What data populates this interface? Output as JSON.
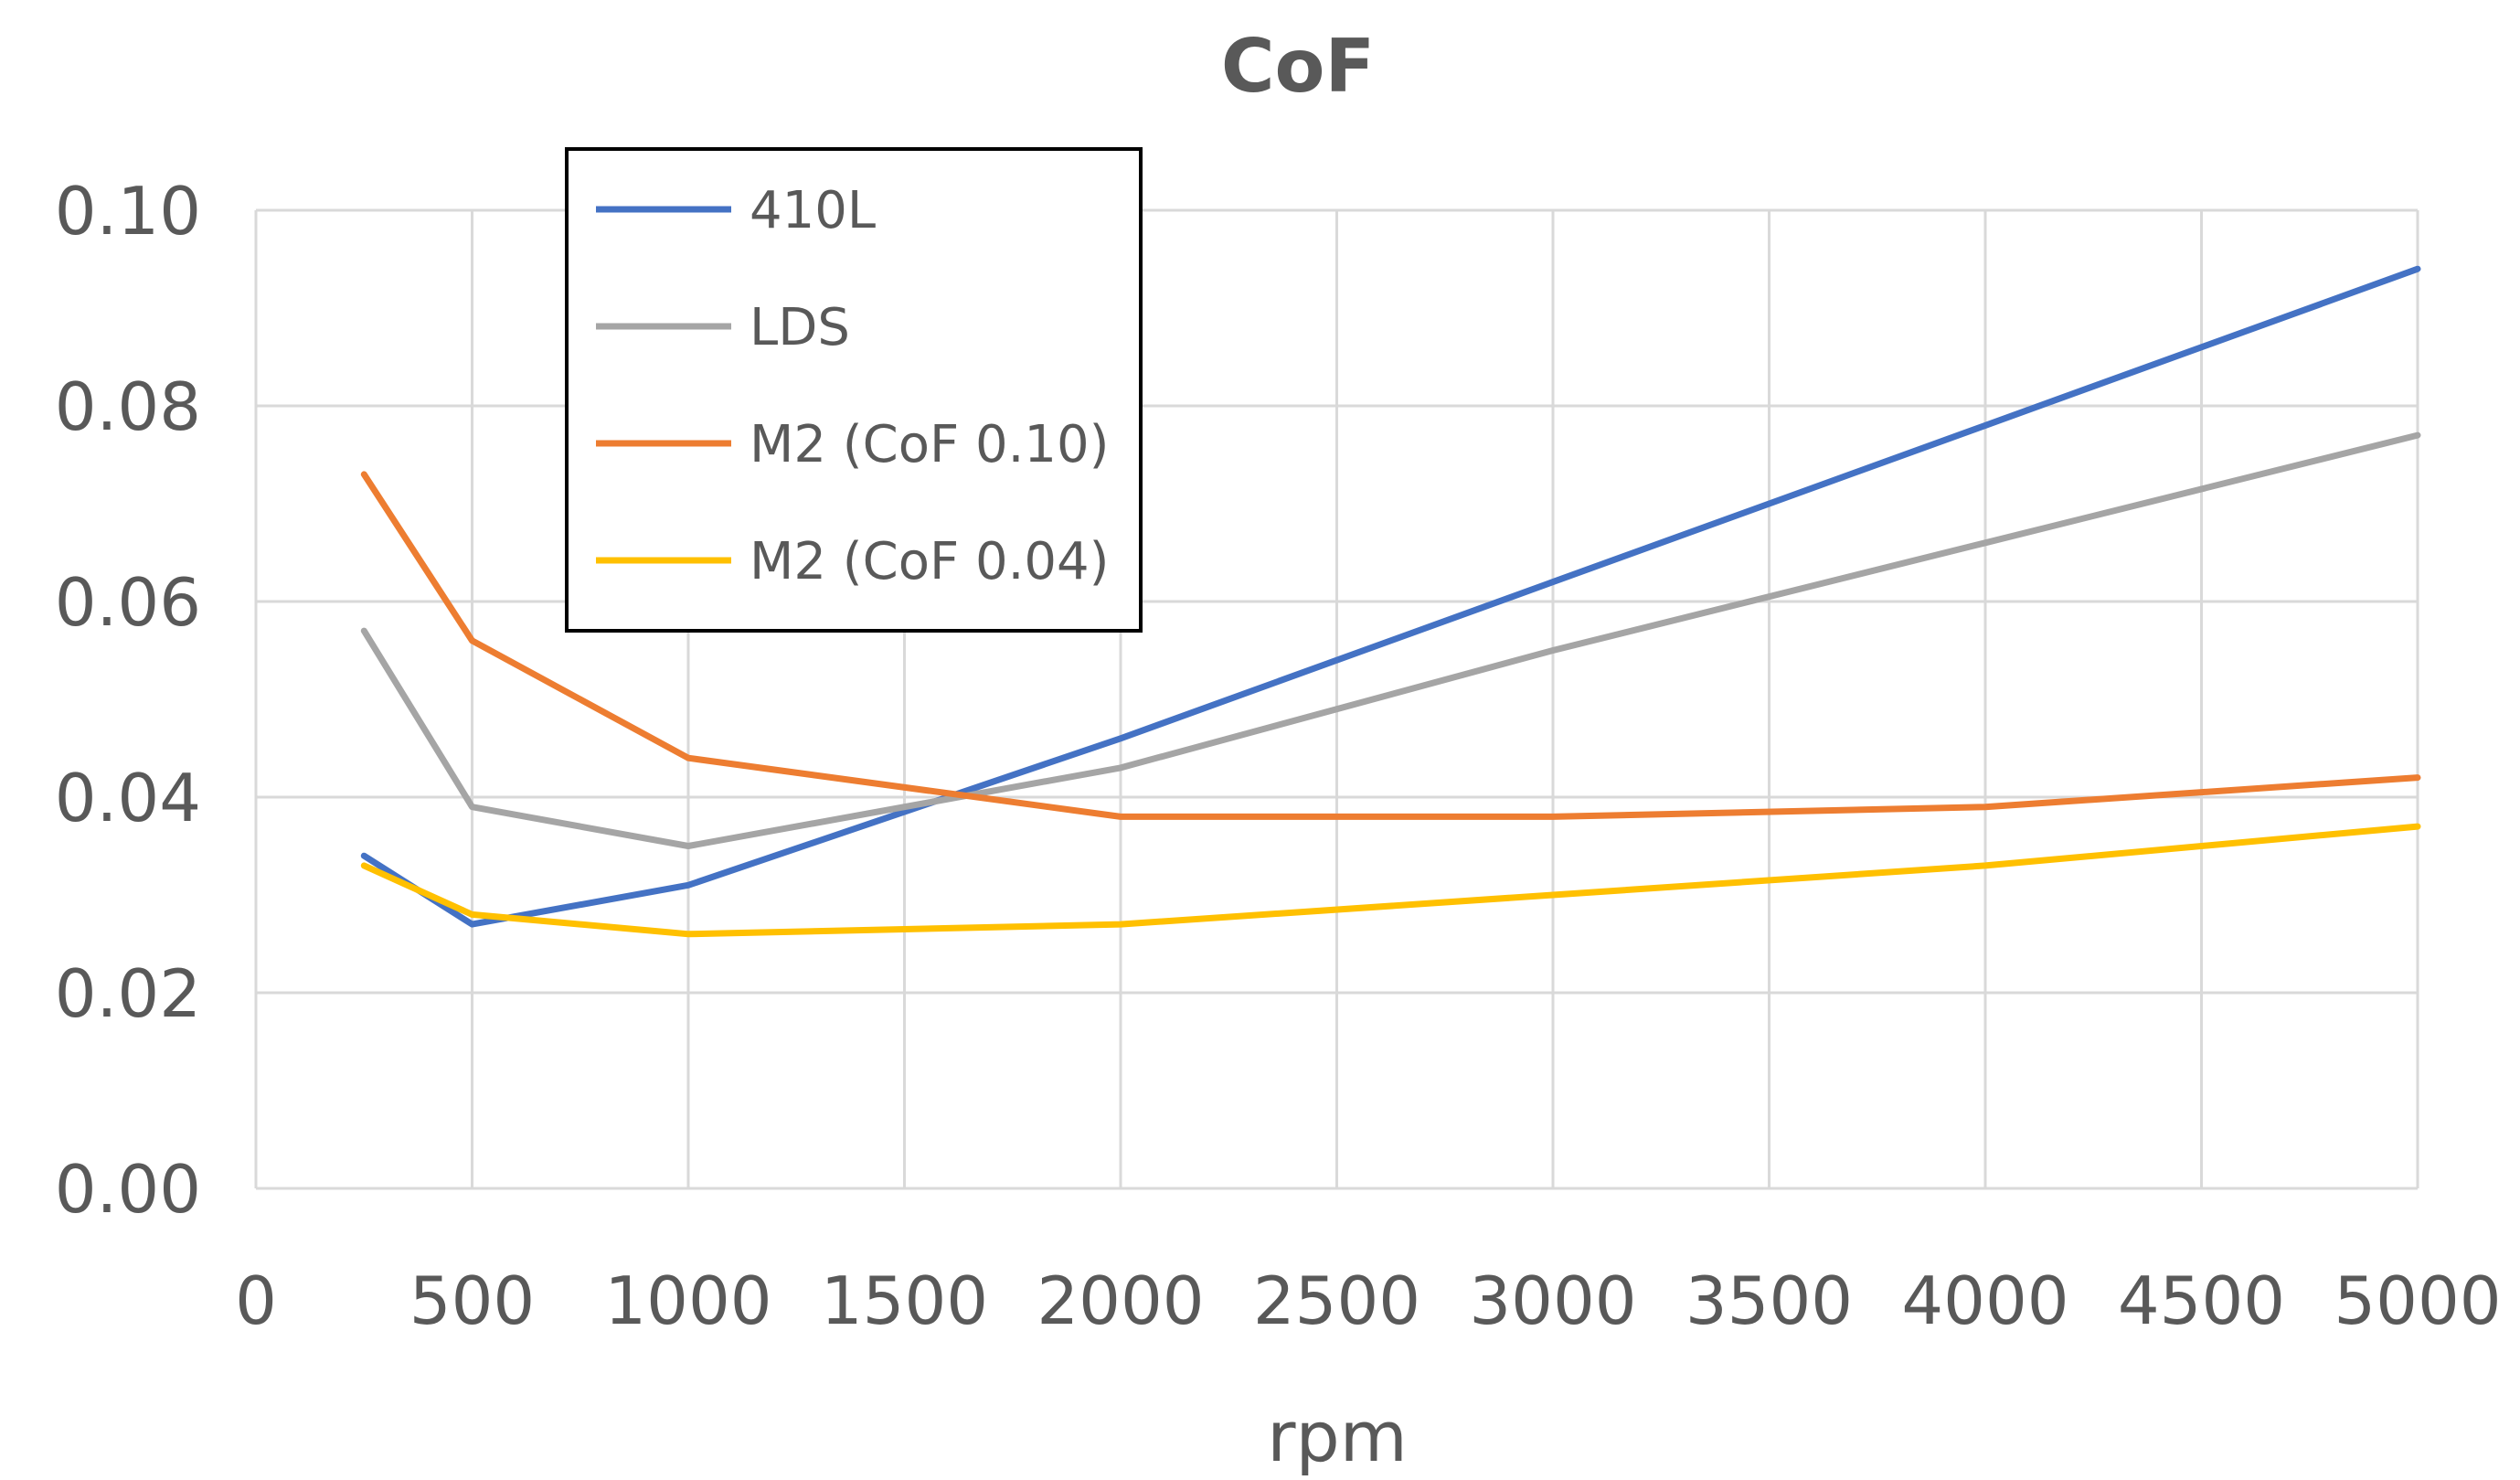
{
  "chart_data": {
    "type": "line",
    "title": "CoF",
    "xlabel": "rpm",
    "ylabel": "",
    "xlim": [
      0,
      5000
    ],
    "ylim": [
      0,
      0.1
    ],
    "x_ticks": [
      0,
      500,
      1000,
      1500,
      2000,
      2500,
      3000,
      3500,
      4000,
      4500,
      5000
    ],
    "x_tick_labels": [
      "0",
      "500",
      "1000",
      "1500",
      "2000",
      "2500",
      "3000",
      "3500",
      "4000",
      "4500",
      "5000"
    ],
    "y_ticks": [
      0,
      0.02,
      0.04,
      0.06,
      0.08,
      0.1
    ],
    "y_tick_labels": [
      "0.00",
      "0.02",
      "0.04",
      "0.06",
      "0.08",
      "0.10"
    ],
    "grid": true,
    "legend_position": "top-left",
    "x": [
      250,
      500,
      1000,
      2000,
      3000,
      4000,
      5000
    ],
    "series": [
      {
        "name": "410L",
        "color": "#4472C4",
        "values": [
          0.034,
          0.027,
          0.031,
          0.046,
          0.062,
          0.078,
          0.094
        ]
      },
      {
        "name": "LDS",
        "color": "#A5A5A5",
        "values": [
          0.057,
          0.039,
          0.035,
          0.043,
          0.055,
          0.066,
          0.077
        ]
      },
      {
        "name": "M2 (CoF 0.10)",
        "color": "#ED7D31",
        "values": [
          0.073,
          0.056,
          0.044,
          0.038,
          0.038,
          0.039,
          0.042
        ]
      },
      {
        "name": "M2 (CoF 0.04)",
        "color": "#FFC000",
        "values": [
          0.033,
          0.028,
          0.026,
          0.027,
          0.03,
          0.033,
          0.037
        ]
      }
    ]
  }
}
